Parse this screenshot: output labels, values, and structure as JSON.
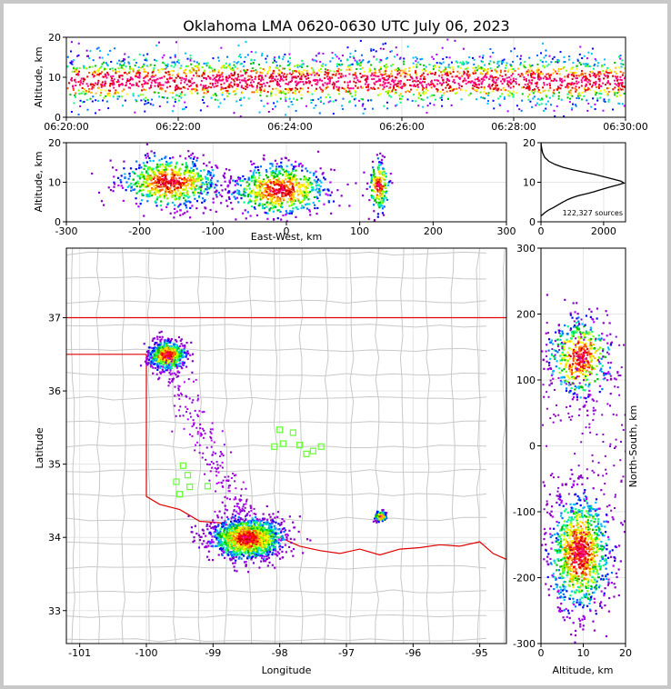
{
  "chart_data": [
    {
      "id": "time_altitude",
      "type": "heatmap",
      "title": "Oklahoma LMA 0620-0630 UTC July 06, 2023",
      "xlabel": "",
      "ylabel": "Altitude, km",
      "x_ticks": [
        "06:20:00",
        "06:22:00",
        "06:24:00",
        "06:26:00",
        "06:28:00",
        "06:30:00"
      ],
      "y_ticks": [
        0,
        10,
        20
      ],
      "ylim": [
        0,
        20
      ],
      "description_values": {
        "dense_altitude_band_km": [
          5,
          15
        ],
        "core_altitude_km": 9
      }
    },
    {
      "id": "ew_altitude",
      "type": "heatmap",
      "xlabel": "East-West, km",
      "ylabel": "Altitude, km",
      "xlim": [
        -300,
        300
      ],
      "ylim": [
        0,
        20
      ],
      "x_ticks": [
        -300,
        -200,
        -100,
        0,
        100,
        200,
        300
      ],
      "y_ticks": [
        0,
        10,
        20
      ],
      "clusters": [
        {
          "x_center": -160,
          "x_range": [
            -240,
            -100
          ],
          "alt_center": 10
        },
        {
          "x_center": -10,
          "x_range": [
            -100,
            40
          ],
          "alt_center": 8
        },
        {
          "x_center": 125,
          "x_range": [
            110,
            140
          ],
          "alt_center": 9
        }
      ]
    },
    {
      "id": "altitude_histogram",
      "type": "line",
      "xlim": [
        0,
        2700
      ],
      "ylim": [
        0,
        20
      ],
      "x_ticks": [
        0,
        2000
      ],
      "y_ticks": [
        0,
        10,
        20
      ],
      "annotation": "122,327 sources",
      "points": [
        [
          0,
          1.5
        ],
        [
          50,
          1.8
        ],
        [
          120,
          2.3
        ],
        [
          250,
          3
        ],
        [
          400,
          3.6
        ],
        [
          550,
          4.3
        ],
        [
          700,
          5
        ],
        [
          850,
          5.6
        ],
        [
          1000,
          6.1
        ],
        [
          1150,
          6.5
        ],
        [
          1300,
          6.8
        ],
        [
          1500,
          7.2
        ],
        [
          1700,
          7.6
        ],
        [
          1950,
          8.2
        ],
        [
          2200,
          8.8
        ],
        [
          2450,
          9.3
        ],
        [
          2650,
          9.8
        ],
        [
          2550,
          10.3
        ],
        [
          2300,
          10.8
        ],
        [
          2000,
          11.4
        ],
        [
          1700,
          12
        ],
        [
          1350,
          12.6
        ],
        [
          1000,
          13.2
        ],
        [
          700,
          13.8
        ],
        [
          450,
          14.5
        ],
        [
          250,
          15.3
        ],
        [
          120,
          16.3
        ],
        [
          50,
          17.5
        ],
        [
          15,
          19
        ],
        [
          0,
          20
        ]
      ]
    },
    {
      "id": "plan_view",
      "type": "heatmap",
      "xlabel": "Longitude",
      "ylabel": "Latitude",
      "xlim": [
        -101.2,
        -94.6
      ],
      "ylim": [
        32.55,
        37.95
      ],
      "x_ticks": [
        -101,
        -100,
        -99,
        -98,
        -97,
        -96,
        -95
      ],
      "y_ticks": [
        33,
        34,
        35,
        36,
        37
      ],
      "clusters": [
        {
          "lon": -98.5,
          "lat": 34.0
        },
        {
          "lon": -99.7,
          "lat": 36.5
        },
        {
          "lon": -96.5,
          "lat": 34.3
        }
      ],
      "stations": [
        {
          "lon": -98.0,
          "lat": 35.47
        },
        {
          "lon": -97.8,
          "lat": 35.43
        },
        {
          "lon": -97.95,
          "lat": 35.28
        },
        {
          "lon": -98.08,
          "lat": 35.24
        },
        {
          "lon": -97.7,
          "lat": 35.26
        },
        {
          "lon": -97.5,
          "lat": 35.18
        },
        {
          "lon": -97.38,
          "lat": 35.24
        },
        {
          "lon": -97.6,
          "lat": 35.14
        },
        {
          "lon": -99.45,
          "lat": 34.98
        },
        {
          "lon": -99.38,
          "lat": 34.85
        },
        {
          "lon": -99.55,
          "lat": 34.76
        },
        {
          "lon": -99.08,
          "lat": 34.7
        },
        {
          "lon": -99.35,
          "lat": 34.69
        },
        {
          "lon": -99.5,
          "lat": 34.59
        }
      ]
    },
    {
      "id": "altitude_ns",
      "type": "heatmap",
      "xlabel": "Altitude, km",
      "ylabel": "North-South, km",
      "xlim": [
        0,
        20
      ],
      "ylim": [
        -300,
        300
      ],
      "x_ticks": [
        0,
        10,
        20
      ],
      "y_ticks": [
        -300,
        -200,
        -100,
        0,
        100,
        200,
        300
      ],
      "clusters": [
        {
          "alt_center": 9,
          "ns_center": 135
        },
        {
          "alt_center": 9,
          "ns_center": -160
        }
      ]
    }
  ]
}
